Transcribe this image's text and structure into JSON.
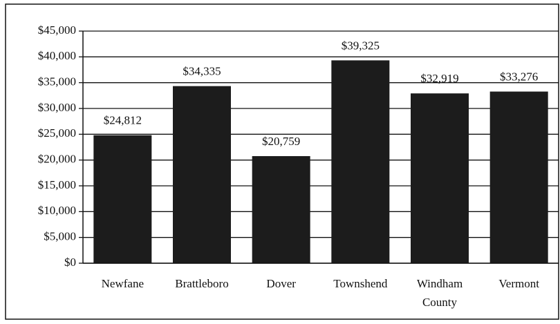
{
  "chart_data": {
    "type": "bar",
    "categories": [
      "Newfane",
      "Brattleboro",
      "Dover",
      "Townshend",
      "Windham County",
      "Vermont"
    ],
    "values": [
      24812,
      34335,
      20759,
      39325,
      32919,
      33276
    ],
    "value_labels": [
      "$24,812",
      "$34,335",
      "$20,759",
      "$39,325",
      "$32,919",
      "$33,276"
    ],
    "color": "#1c1c1c",
    "ylim": [
      0,
      45000
    ],
    "yticks": [
      {
        "value": 0,
        "label": "$0"
      },
      {
        "value": 5000,
        "label": "$5,000"
      },
      {
        "value": 10000,
        "label": "$10,000"
      },
      {
        "value": 15000,
        "label": "$15,000"
      },
      {
        "value": 20000,
        "label": "$20,000"
      },
      {
        "value": 25000,
        "label": "$25,000"
      },
      {
        "value": 30000,
        "label": "$30,000"
      },
      {
        "value": 35000,
        "label": "$35,000"
      },
      {
        "value": 40000,
        "label": "$40,000"
      },
      {
        "value": 45000,
        "label": "$45,000"
      }
    ],
    "grid": true
  }
}
